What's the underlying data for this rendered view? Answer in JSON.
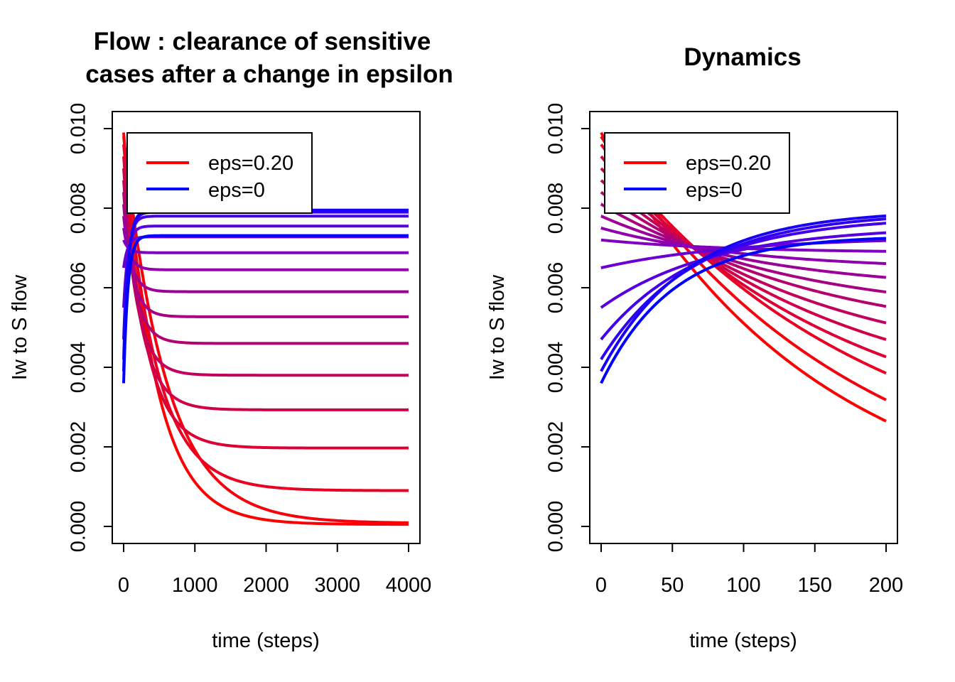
{
  "chart_data": [
    {
      "type": "line",
      "title_lines": [
        "Flow : clearance of sensitive",
        "cases after a change in epsilon"
      ],
      "xlabel": "time (steps)",
      "ylabel": "Iw to S flow",
      "xlim": [
        0,
        4000
      ],
      "ylim": [
        0,
        0.01
      ],
      "xticks": [
        "0",
        "1000",
        "2000",
        "3000",
        "4000"
      ],
      "yticks": [
        "0.000",
        "0.002",
        "0.004",
        "0.006",
        "0.008",
        "0.010"
      ],
      "xtick_values": [
        0,
        1000,
        2000,
        3000,
        4000
      ],
      "ytick_values": [
        0,
        0.002,
        0.004,
        0.006,
        0.008,
        0.01
      ],
      "legend": {
        "position": "top-left",
        "entries": [
          {
            "label": "eps=0.20",
            "color": "#ff0000"
          },
          {
            "label": "eps=0",
            "color": "#0000ff"
          }
        ]
      },
      "series_model": "exponential relaxation from start to plateau",
      "series": [
        {
          "color": "#ff0000",
          "start": 0.0099,
          "plateau": 5e-05,
          "tau": 450
        },
        {
          "color": "#f7000c",
          "start": 0.0098,
          "plateau": 8e-05,
          "tau": 600
        },
        {
          "color": "#e90022",
          "start": 0.0096,
          "plateau": 0.0009,
          "tau": 450
        },
        {
          "color": "#dc0035",
          "start": 0.0093,
          "plateau": 0.00197,
          "tau": 310
        },
        {
          "color": "#cf0049",
          "start": 0.009,
          "plateau": 0.00293,
          "tau": 240
        },
        {
          "color": "#c2005d",
          "start": 0.0087,
          "plateau": 0.0038,
          "tau": 190
        },
        {
          "color": "#b50070",
          "start": 0.0084,
          "plateau": 0.0046,
          "tau": 160
        },
        {
          "color": "#a80084",
          "start": 0.0081,
          "plateau": 0.00527,
          "tau": 130
        },
        {
          "color": "#9b0098",
          "start": 0.0078,
          "plateau": 0.0059,
          "tau": 110
        },
        {
          "color": "#8e00ac",
          "start": 0.0075,
          "plateau": 0.00645,
          "tau": 90
        },
        {
          "color": "#8100c0",
          "start": 0.0072,
          "plateau": 0.00688,
          "tau": 70
        },
        {
          "color": "#6c00d0",
          "start": 0.0065,
          "plateau": 0.00728,
          "tau": 60
        },
        {
          "color": "#5800df",
          "start": 0.0055,
          "plateau": 0.00755,
          "tau": 60
        },
        {
          "color": "#4400ea",
          "start": 0.0047,
          "plateau": 0.0078,
          "tau": 60
        },
        {
          "color": "#3000f2",
          "start": 0.0042,
          "plateau": 0.0079,
          "tau": 60
        },
        {
          "color": "#1800f8",
          "start": 0.0039,
          "plateau": 0.00795,
          "tau": 60
        },
        {
          "color": "#0000ff",
          "start": 0.0036,
          "plateau": 0.00731,
          "tau": 60
        }
      ]
    },
    {
      "type": "line",
      "title_lines": [
        "Dynamics"
      ],
      "xlabel": "time (steps)",
      "ylabel": "Iw to S flow",
      "xlim": [
        0,
        200
      ],
      "ylim": [
        0,
        0.01
      ],
      "xticks": [
        "0",
        "50",
        "100",
        "150",
        "200"
      ],
      "yticks": [
        "0.000",
        "0.002",
        "0.004",
        "0.006",
        "0.008",
        "0.010"
      ],
      "xtick_values": [
        0,
        50,
        100,
        150,
        200
      ],
      "ytick_values": [
        0,
        0.002,
        0.004,
        0.006,
        0.008,
        0.01
      ],
      "legend": {
        "position": "top-left",
        "entries": [
          {
            "label": "eps=0.20",
            "color": "#ff0000"
          },
          {
            "label": "eps=0",
            "color": "#0000ff"
          }
        ]
      },
      "series_model": "exponential relaxation from start to plateau",
      "series": [
        {
          "color": "#ff0000",
          "start": 0.0099,
          "plateau": 5e-05,
          "tau": 150
        },
        {
          "color": "#f7000c",
          "start": 0.0098,
          "plateau": 8e-05,
          "tau": 175
        },
        {
          "color": "#e90022",
          "start": 0.0096,
          "plateau": 0.0009,
          "tau": 185
        },
        {
          "color": "#dc0035",
          "start": 0.0093,
          "plateau": 0.00197,
          "tau": 172
        },
        {
          "color": "#cf0049",
          "start": 0.009,
          "plateau": 0.00293,
          "tau": 162
        },
        {
          "color": "#c2005d",
          "start": 0.0087,
          "plateau": 0.0038,
          "tau": 152
        },
        {
          "color": "#b50070",
          "start": 0.0084,
          "plateau": 0.0046,
          "tau": 142
        },
        {
          "color": "#a80084",
          "start": 0.0081,
          "plateau": 0.00527,
          "tau": 132
        },
        {
          "color": "#9b0098",
          "start": 0.0078,
          "plateau": 0.0059,
          "tau": 120
        },
        {
          "color": "#8e00ac",
          "start": 0.0075,
          "plateau": 0.00645,
          "tau": 105
        },
        {
          "color": "#8100c0",
          "start": 0.0072,
          "plateau": 0.00688,
          "tau": 90
        },
        {
          "color": "#6c00d0",
          "start": 0.0065,
          "plateau": 0.00728,
          "tau": 95
        },
        {
          "color": "#5800df",
          "start": 0.0055,
          "plateau": 0.00755,
          "tau": 80
        },
        {
          "color": "#4400ea",
          "start": 0.0047,
          "plateau": 0.0078,
          "tau": 70
        },
        {
          "color": "#3000f2",
          "start": 0.0042,
          "plateau": 0.0079,
          "tau": 65
        },
        {
          "color": "#1800f8",
          "start": 0.0039,
          "plateau": 0.00795,
          "tau": 60
        },
        {
          "color": "#0000ff",
          "start": 0.0036,
          "plateau": 0.00731,
          "tau": 50
        }
      ]
    }
  ]
}
